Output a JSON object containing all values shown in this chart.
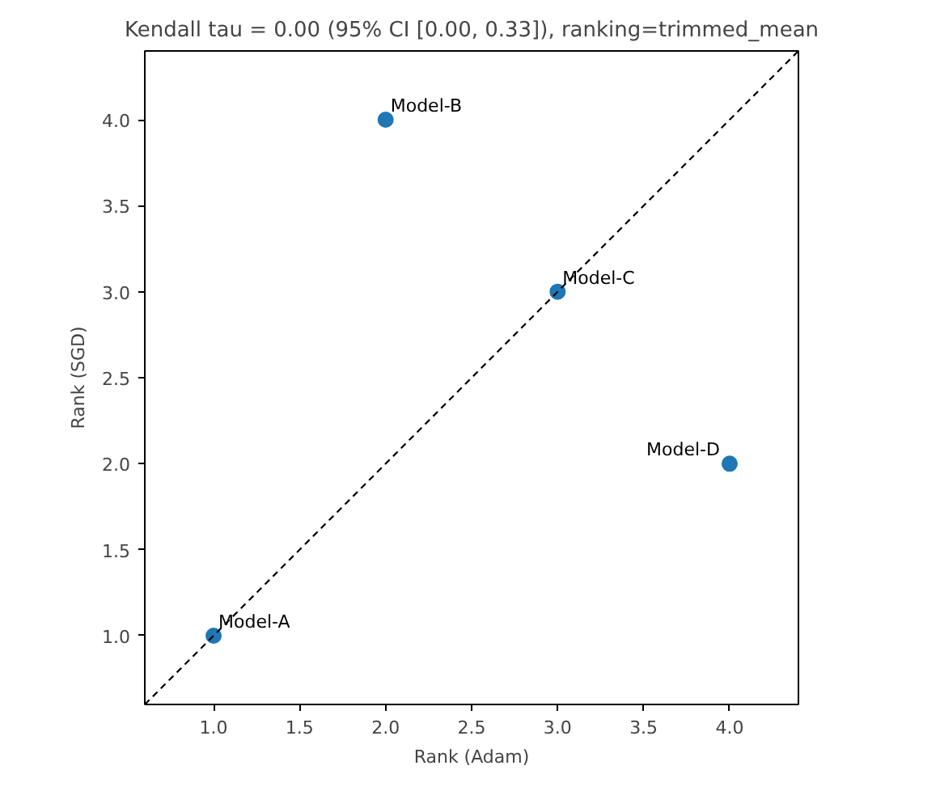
{
  "chart_data": {
    "type": "scatter",
    "title": "Kendall tau = 0.00 (95% CI [0.00, 0.33]), ranking=trimmed_mean",
    "xlabel": "Rank (Adam)",
    "ylabel": "Rank (SGD)",
    "x": [
      1.0,
      2.0,
      3.0,
      4.0
    ],
    "series": [
      {
        "color": "#1f77b4",
        "values": [
          1.0,
          4.0,
          3.0,
          2.0
        ],
        "marker": "circle"
      },
      {
        "type": "line",
        "color": "#000000",
        "line_style": "dashed",
        "x": [
          0.6,
          4.4
        ],
        "values": [
          0.6,
          4.4
        ]
      }
    ],
    "annotations": [
      {
        "text": "Model-A",
        "x": 1.0,
        "y": 1.0
      },
      {
        "text": "Model-B",
        "x": 2.0,
        "y": 4.0
      },
      {
        "text": "Model-C",
        "x": 3.0,
        "y": 3.0
      },
      {
        "text": "Model-D",
        "x": 4.0,
        "y": 2.0
      }
    ],
    "xlim": [
      0.6,
      4.4
    ],
    "ylim": [
      0.6,
      4.4
    ],
    "xticks": [
      {
        "value": 1,
        "label": "1.0"
      },
      {
        "value": 1.5,
        "label": "1.5"
      },
      {
        "value": 2,
        "label": "2.0"
      },
      {
        "value": 2.5,
        "label": "2.5"
      },
      {
        "value": 3,
        "label": "3.0"
      },
      {
        "value": 3.5,
        "label": "3.5"
      },
      {
        "value": 4,
        "label": "4.0"
      }
    ],
    "yticks": [
      {
        "value": 1,
        "label": "1.0"
      },
      {
        "value": 1.5,
        "label": "1.5"
      },
      {
        "value": 2,
        "label": "2.0"
      },
      {
        "value": 2.5,
        "label": "2.5"
      },
      {
        "value": 3,
        "label": "3.0"
      },
      {
        "value": 3.5,
        "label": "3.5"
      },
      {
        "value": 4,
        "label": "4.0"
      }
    ],
    "grid": false
  }
}
